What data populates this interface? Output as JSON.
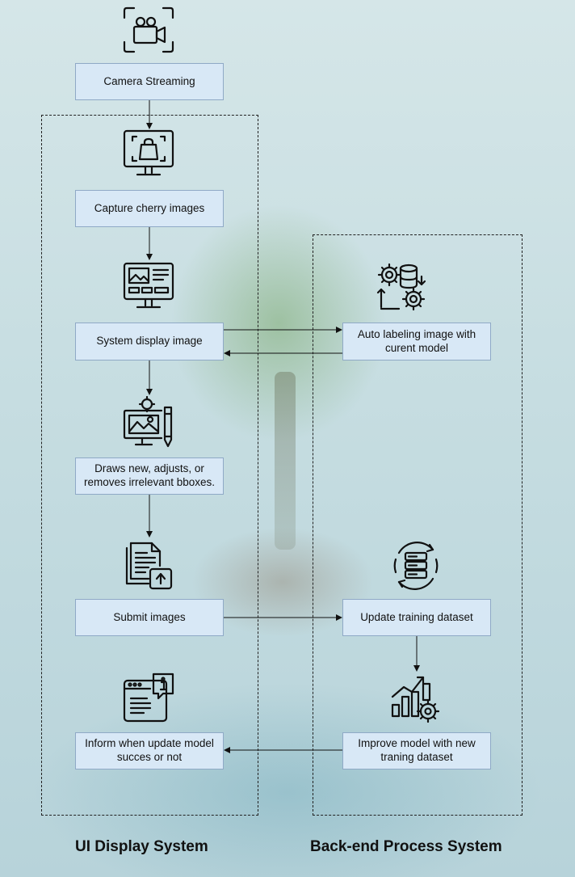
{
  "steps": {
    "camera": "Camera Streaming",
    "capture": "Capture cherry images",
    "display": "System display image",
    "auto_label": "Auto labeling image with curent model",
    "draw": "Draws new, adjusts, or removes irrelevant bboxes.",
    "submit": "Submit images",
    "update_dataset": "Update training dataset",
    "improve": "Improve model with new traning dataset",
    "inform": "Inform when update model succes or not"
  },
  "zones": {
    "ui": "UI Display System",
    "backend": "Back-end Process System"
  },
  "icons": {
    "camera": "video-camera-icon",
    "capture": "monitor-capture-icon",
    "display": "monitor-dashboard-icon",
    "auto_label": "gears-database-icon",
    "draw": "monitor-edit-image-icon",
    "submit": "document-upload-icon",
    "update_dataset": "database-sync-icon",
    "improve": "chart-growth-gear-icon",
    "inform": "window-info-icon"
  },
  "colors": {
    "box_fill": "#d8e8f6",
    "box_border": "#8fa9c6",
    "line": "#111111"
  }
}
